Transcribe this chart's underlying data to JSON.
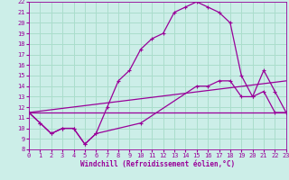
{
  "xlabel": "Windchill (Refroidissement éolien,°C)",
  "bg_color": "#cceee8",
  "grid_color": "#aaddcc",
  "line_color": "#990099",
  "xmin": 0,
  "xmax": 23,
  "ymin": 8,
  "ymax": 22,
  "curve1_x": [
    0,
    1,
    2,
    3,
    4,
    5,
    6,
    7,
    8,
    9,
    10,
    11,
    12,
    13,
    14,
    15,
    16,
    17,
    18,
    19,
    20,
    21,
    22,
    23
  ],
  "curve1_y": [
    11.5,
    10.5,
    9.5,
    10.0,
    10.0,
    8.5,
    9.5,
    12.0,
    14.5,
    15.5,
    17.5,
    18.5,
    19.0,
    21.0,
    21.5,
    22.0,
    21.5,
    21.0,
    20.0,
    15.0,
    13.0,
    15.5,
    13.5,
    11.5
  ],
  "curve2_x": [
    0,
    1,
    2,
    3,
    4,
    5,
    6,
    10,
    15,
    16,
    17,
    18,
    19,
    20,
    21,
    22,
    23
  ],
  "curve2_y": [
    11.5,
    10.5,
    9.5,
    10.0,
    10.0,
    8.5,
    9.5,
    10.5,
    14.0,
    14.0,
    14.5,
    14.5,
    13.0,
    13.0,
    13.5,
    11.5,
    11.5
  ],
  "curve3_x": [
    0,
    23
  ],
  "curve3_y": [
    11.5,
    14.5
  ],
  "curve4_x": [
    0,
    23
  ],
  "curve4_y": [
    11.5,
    11.5
  ],
  "xticks": [
    0,
    1,
    2,
    3,
    4,
    5,
    6,
    7,
    8,
    9,
    10,
    11,
    12,
    13,
    14,
    15,
    16,
    17,
    18,
    19,
    20,
    21,
    22,
    23
  ],
  "yticks": [
    8,
    9,
    10,
    11,
    12,
    13,
    14,
    15,
    16,
    17,
    18,
    19,
    20,
    21,
    22
  ]
}
